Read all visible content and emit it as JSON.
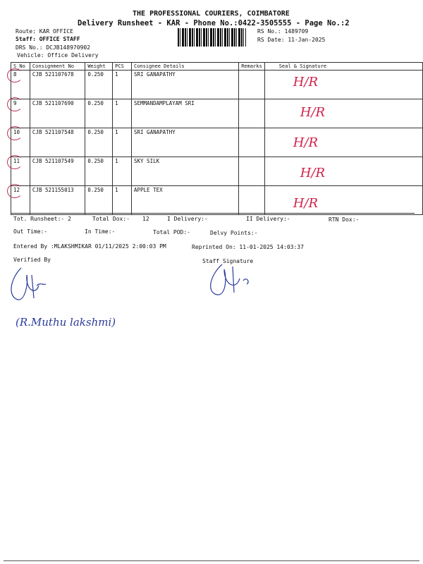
{
  "header": {
    "company": "THE PROFESSIONAL COURIERS, COIMBATORE",
    "subtitle": "Delivery Runsheet - KAR - Phone No.:0422-3505555 - Page No.:2",
    "route": "Route: KAR OFFICE",
    "staff": "Staff: OFFICE STAFF",
    "drs": "DRS No.: DCJB148970902",
    "vehicle": "Vehicle: Office Delivery",
    "rs_no": "RS No.: 1489709",
    "rs_date": "RS Date: 11-Jan-2025"
  },
  "table": {
    "columns": [
      "S_No",
      "Consignment No",
      "Weight",
      "PCS",
      "Consignee Details",
      "Remarks",
      "Seal & Signature"
    ],
    "rows": [
      {
        "sno": "8",
        "cn": "CJB 521107678",
        "weight": "0.250",
        "pcs": "1",
        "consignee": "SRI GANAPATHY",
        "remarks": "",
        "seal": "H/R"
      },
      {
        "sno": "9",
        "cn": "CJB 521107690",
        "weight": "0.250",
        "pcs": "1",
        "consignee": "SEMMANDAMPLAYAM SRI",
        "remarks": "",
        "seal": "H/R"
      },
      {
        "sno": "10",
        "cn": "CJB 521107548",
        "weight": "0.250",
        "pcs": "1",
        "consignee": "SRI GANAPATHY",
        "remarks": "",
        "seal": "H/R"
      },
      {
        "sno": "11",
        "cn": "CJB 521107549",
        "weight": "0.250",
        "pcs": "1",
        "consignee": "SKY SILK",
        "remarks": "",
        "seal": "H/R"
      },
      {
        "sno": "12",
        "cn": "CJB 521155013",
        "weight": "0.250",
        "pcs": "1",
        "consignee": "APPLE TEX",
        "remarks": "",
        "seal": "H/R"
      }
    ]
  },
  "footer": {
    "tot_runsheet": "Tot. Runsheet:- 2",
    "total_dox": "Total Dox:-",
    "total_dox_val": "12",
    "i_delivery": "I Delivery:-",
    "ii_delivery": "II Delivery:-",
    "rtn_dox": "RTN Dox:-",
    "out_time": "Out Time:-",
    "in_time": "In Time:-",
    "total_pod": "Total POD:-",
    "delvy_points": "Delvy Points:-",
    "entered_by": "Entered By :MLAKSHMIKAR 01/11/2025 2:00:03 PM",
    "reprinted": "Reprinted On: 11-01-2025 14:03:37",
    "verified_by": "Verified By",
    "staff_signature": "Staff Signature",
    "handwritten_name": "(R.Muthu lakshmi)"
  },
  "colors": {
    "ink_red": "#d0224a",
    "ink_blue": "#2a3a9a"
  }
}
